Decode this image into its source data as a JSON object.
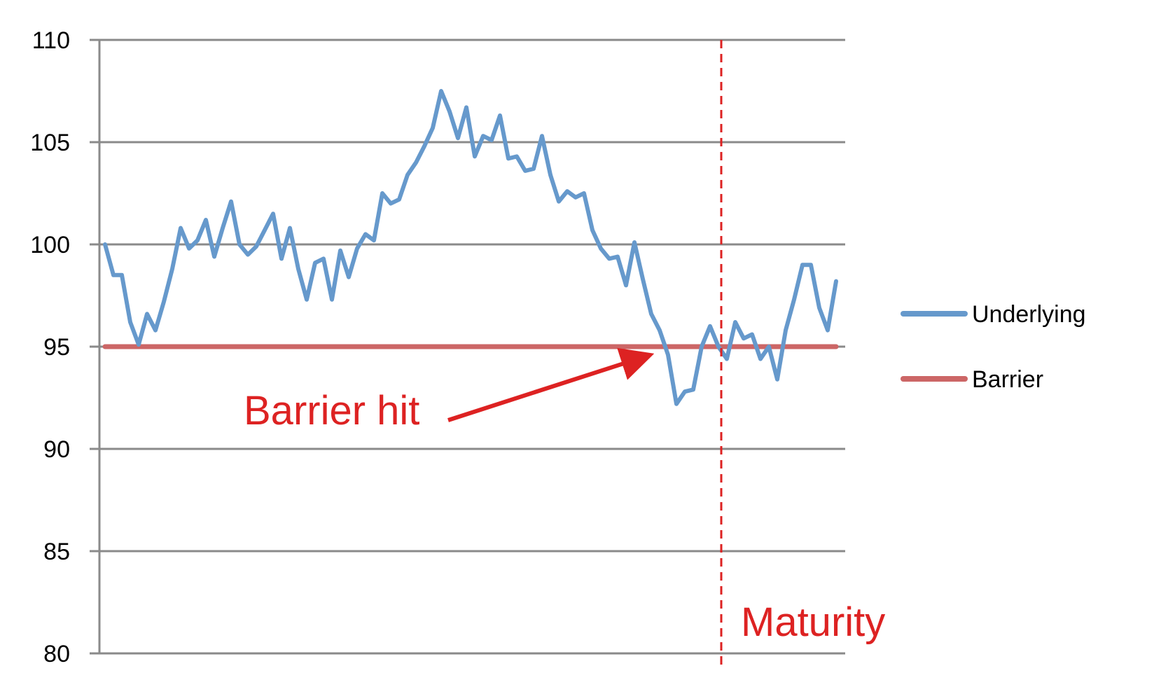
{
  "chart_data": {
    "type": "line",
    "title": "",
    "xlabel": "",
    "ylabel": "",
    "ylim": [
      80,
      110
    ],
    "yticks": [
      "80",
      "85",
      "90",
      "95",
      "100",
      "105",
      "110"
    ],
    "grid": "horizontal",
    "legend_position": "right",
    "series": [
      {
        "name": "Underlying",
        "color": "#6699cc",
        "values": [
          100.0,
          98.5,
          98.5,
          96.2,
          95.1,
          96.6,
          95.8,
          97.2,
          98.8,
          100.8,
          99.8,
          100.2,
          101.2,
          99.4,
          100.8,
          102.1,
          100.0,
          99.5,
          99.9,
          100.7,
          101.5,
          99.3,
          100.8,
          98.8,
          97.3,
          99.1,
          99.3,
          97.3,
          99.7,
          98.4,
          99.8,
          100.5,
          100.2,
          102.5,
          102.0,
          102.2,
          103.4,
          104.0,
          104.8,
          105.7,
          107.5,
          106.5,
          105.2,
          106.7,
          104.3,
          105.3,
          105.1,
          106.3,
          104.2,
          104.3,
          103.6,
          103.7,
          105.3,
          103.4,
          102.1,
          102.6,
          102.3,
          102.5,
          100.7,
          99.8,
          99.3,
          99.4,
          98.0,
          100.1,
          98.3,
          96.6,
          95.8,
          94.6,
          92.2,
          92.8,
          92.9,
          95.0,
          96.0,
          95.0,
          94.4,
          96.2,
          95.4,
          95.6,
          94.4,
          95.0,
          93.4,
          95.8,
          97.3,
          99.0,
          99.0,
          96.9,
          95.8,
          98.2
        ]
      },
      {
        "name": "Barrier",
        "color": "#cc6666",
        "values": [
          95,
          95
        ]
      }
    ],
    "annotations": [
      {
        "id": "barrier-hit",
        "text": "Barrier hit",
        "color": "#dd2222",
        "x_index": 66,
        "y": 95
      },
      {
        "id": "maturity",
        "text": "Maturity",
        "color": "#dd2222",
        "x_index": 72
      }
    ]
  }
}
